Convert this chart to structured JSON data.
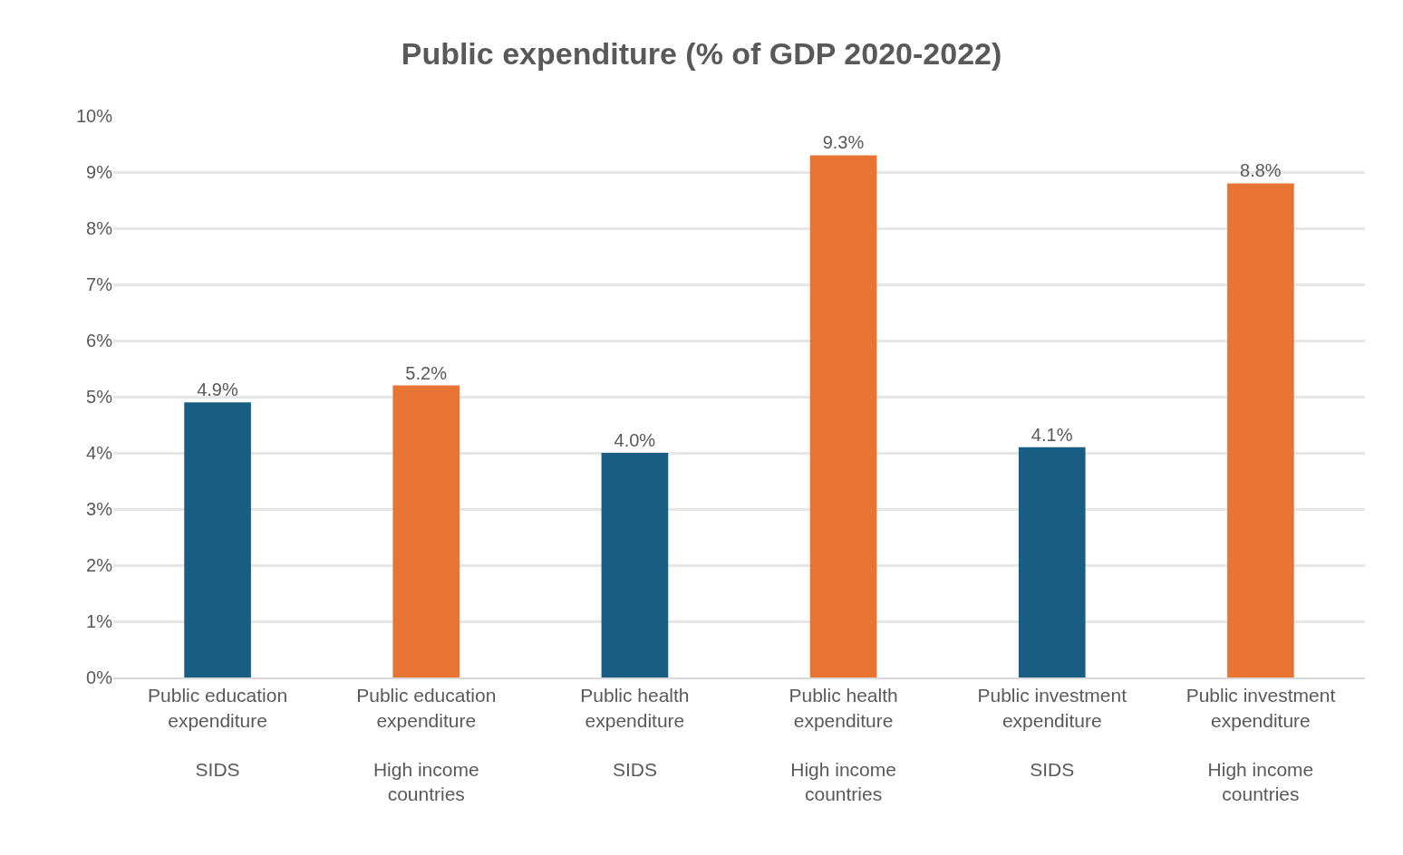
{
  "chart_data": {
    "type": "bar",
    "title": "Public expenditure (% of GDP 2020-2022)",
    "categories": [
      "Public education expenditure\n\nSIDS",
      "Public education expenditure\n\nHigh income countries",
      "Public health expenditure\n\nSIDS",
      "Public health expenditure\n\nHigh income countries",
      "Public investment expenditure\n\nSIDS",
      "Public investment expenditure\n\nHigh income countries"
    ],
    "values": [
      4.9,
      5.2,
      4.0,
      9.3,
      4.1,
      8.8
    ],
    "colors": [
      "#175e82",
      "#e87434",
      "#175e82",
      "#e87434",
      "#175e82",
      "#e87434"
    ],
    "value_labels": [
      "4.9%",
      "5.2%",
      "4.0%",
      "9.3%",
      "4.1%",
      "8.8%"
    ],
    "ylim": [
      0,
      10
    ],
    "yticks": [
      {
        "value": 0,
        "label": "0%"
      },
      {
        "value": 1,
        "label": "1%"
      },
      {
        "value": 2,
        "label": "2%"
      },
      {
        "value": 3,
        "label": "3%"
      },
      {
        "value": 4,
        "label": "4%"
      },
      {
        "value": 5,
        "label": "5%"
      },
      {
        "value": 6,
        "label": "6%"
      },
      {
        "value": 7,
        "label": "7%"
      },
      {
        "value": 8,
        "label": "8%"
      },
      {
        "value": 9,
        "label": "9%"
      },
      {
        "value": 10,
        "label": "10%"
      }
    ],
    "grid": "y"
  }
}
